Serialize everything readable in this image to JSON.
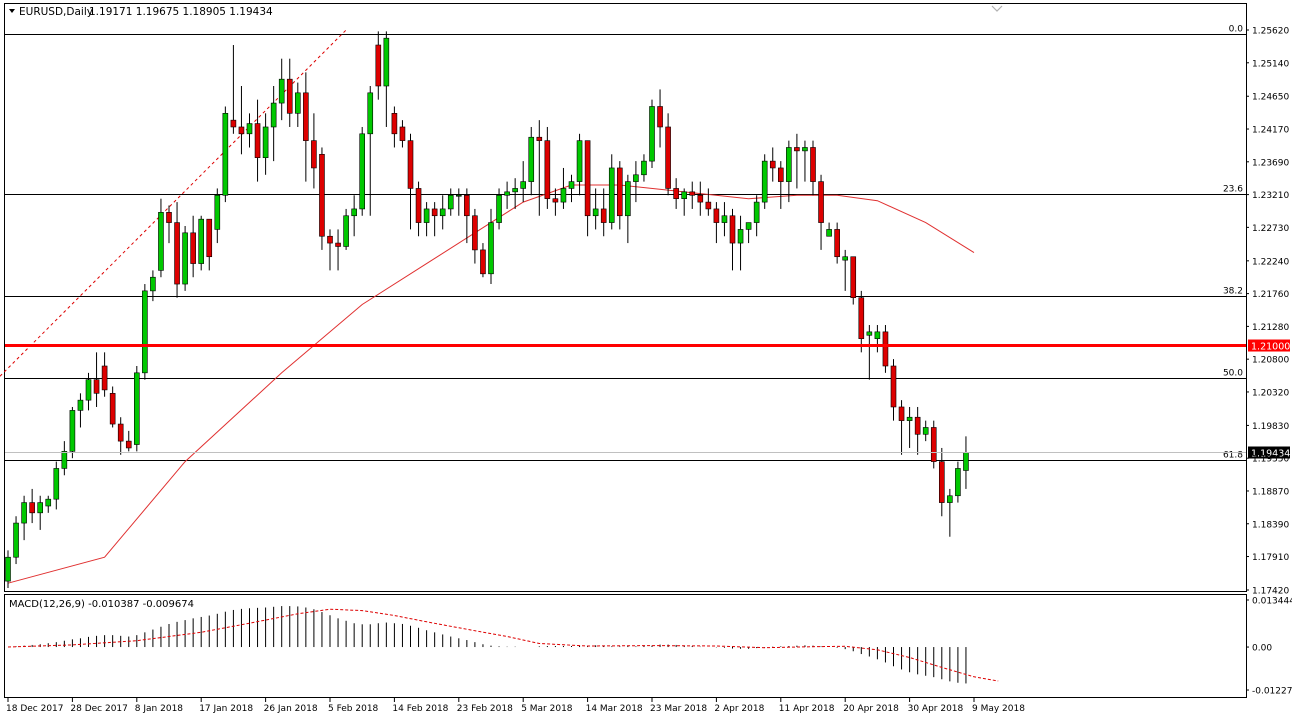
{
  "header": {
    "title": "EURUSD,Daily",
    "ohlc": "1.19171 1.19675 1.18905 1.19434"
  },
  "chart_data": {
    "type": "candlestick",
    "symbol": "EURUSD",
    "timeframe": "Daily",
    "colors": {
      "bull": "#00c800",
      "bear": "#dd0000",
      "ma": "#e03030",
      "fib": "#000000",
      "level": "#ff0000",
      "grid": "#000000"
    },
    "ylim": [
      1.1742,
      1.2562
    ],
    "y_ticks": [
      "1.25620",
      "1.25140",
      "1.24650",
      "1.24170",
      "1.23690",
      "1.23210",
      "1.22730",
      "1.22240",
      "1.21760",
      "1.21280",
      "1.20800",
      "1.20320",
      "1.19830",
      "1.19350",
      "1.18870",
      "1.18390",
      "1.17910",
      "1.17420"
    ],
    "x_ticks": [
      "18 Dec 2017",
      "28 Dec 2017",
      "8 Jan 2018",
      "17 Jan 2018",
      "26 Jan 2018",
      "5 Feb 2018",
      "14 Feb 2018",
      "23 Feb 2018",
      "5 Mar 2018",
      "14 Mar 2018",
      "23 Mar 2018",
      "2 Apr 2018",
      "11 Apr 2018",
      "20 Apr 2018",
      "30 Apr 2018",
      "9 May 2018"
    ],
    "fib_levels": [
      {
        "label": "0.0",
        "price": 1.2556
      },
      {
        "label": "23.6",
        "price": 1.2322
      },
      {
        "label": "38.2",
        "price": 1.2172
      },
      {
        "label": "50.0",
        "price": 1.2052
      },
      {
        "label": "61.8",
        "price": 1.1932
      }
    ],
    "horizontal_level": {
      "label": "1.21000",
      "price": 1.21
    },
    "current_price_label": "1.19434",
    "current_price": 1.19434,
    "candles": [
      [
        1.1755,
        1.18,
        1.1745,
        1.179
      ],
      [
        1.179,
        1.185,
        1.178,
        1.184
      ],
      [
        1.184,
        1.188,
        1.1815,
        1.187
      ],
      [
        1.187,
        1.189,
        1.184,
        1.1855
      ],
      [
        1.1855,
        1.188,
        1.183,
        1.187
      ],
      [
        1.1865,
        1.188,
        1.1855,
        1.1875
      ],
      [
        1.1875,
        1.193,
        1.186,
        1.192
      ],
      [
        1.192,
        1.196,
        1.191,
        1.1945
      ],
      [
        1.1945,
        1.201,
        1.1935,
        1.2005
      ],
      [
        1.2005,
        1.203,
        1.198,
        1.202
      ],
      [
        1.202,
        1.206,
        1.2005,
        1.205
      ],
      [
        1.205,
        1.209,
        1.201,
        1.203
      ],
      [
        1.207,
        1.209,
        1.2025,
        1.2035
      ],
      [
        1.203,
        1.204,
        1.198,
        1.1985
      ],
      [
        1.1985,
        1.1995,
        1.194,
        1.196
      ],
      [
        1.196,
        1.1975,
        1.1945,
        1.195
      ],
      [
        1.1955,
        1.207,
        1.1945,
        1.206
      ],
      [
        1.206,
        1.219,
        1.205,
        1.218
      ],
      [
        1.218,
        1.221,
        1.2165,
        1.22
      ],
      [
        1.221,
        1.2315,
        1.22,
        1.2295
      ],
      [
        1.2295,
        1.2305,
        1.225,
        1.228
      ],
      [
        1.228,
        1.231,
        1.217,
        1.219
      ],
      [
        1.219,
        1.2275,
        1.218,
        1.2265
      ],
      [
        1.2265,
        1.229,
        1.22,
        1.222
      ],
      [
        1.222,
        1.229,
        1.221,
        1.2285
      ],
      [
        1.2285,
        1.2285,
        1.221,
        1.223
      ],
      [
        1.227,
        1.233,
        1.225,
        1.232
      ],
      [
        1.232,
        1.245,
        1.231,
        1.244
      ],
      [
        1.243,
        1.254,
        1.241,
        1.242
      ],
      [
        1.242,
        1.248,
        1.238,
        1.241
      ],
      [
        1.241,
        1.244,
        1.239,
        1.2425
      ],
      [
        1.2425,
        1.246,
        1.234,
        1.2375
      ],
      [
        1.2375,
        1.244,
        1.235,
        1.242
      ],
      [
        1.242,
        1.248,
        1.237,
        1.2455
      ],
      [
        1.2455,
        1.252,
        1.243,
        1.249
      ],
      [
        1.249,
        1.252,
        1.242,
        1.244
      ],
      [
        1.244,
        1.2485,
        1.242,
        1.247
      ],
      [
        1.247,
        1.25,
        1.234,
        1.24
      ],
      [
        1.24,
        1.244,
        1.233,
        1.236
      ],
      [
        1.238,
        1.239,
        1.224,
        1.226
      ],
      [
        1.226,
        1.227,
        1.221,
        1.225
      ],
      [
        1.225,
        1.227,
        1.221,
        1.2245
      ],
      [
        1.2245,
        1.23,
        1.224,
        1.229
      ],
      [
        1.229,
        1.232,
        1.226,
        1.23
      ],
      [
        1.23,
        1.242,
        1.229,
        1.241
      ],
      [
        1.241,
        1.248,
        1.229,
        1.247
      ],
      [
        1.254,
        1.256,
        1.246,
        1.248
      ],
      [
        1.248,
        1.256,
        1.242,
        1.255
      ],
      [
        1.244,
        1.245,
        1.239,
        1.241
      ],
      [
        1.242,
        1.243,
        1.239,
        1.24
      ],
      [
        1.24,
        1.241,
        1.227,
        1.233
      ],
      [
        1.233,
        1.234,
        1.226,
        1.228
      ],
      [
        1.228,
        1.231,
        1.226,
        1.23
      ],
      [
        1.23,
        1.231,
        1.226,
        1.229
      ],
      [
        1.229,
        1.232,
        1.227,
        1.23
      ],
      [
        1.23,
        1.233,
        1.229,
        1.232
      ],
      [
        1.232,
        1.233,
        1.229,
        1.232
      ],
      [
        1.232,
        1.233,
        1.225,
        1.229
      ],
      [
        1.229,
        1.23,
        1.222,
        1.224
      ],
      [
        1.224,
        1.225,
        1.22,
        1.2205
      ],
      [
        1.2205,
        1.23,
        1.219,
        1.228
      ],
      [
        1.228,
        1.233,
        1.227,
        1.232
      ],
      [
        1.232,
        1.234,
        1.23,
        1.2325
      ],
      [
        1.2325,
        1.2345,
        1.23,
        1.233
      ],
      [
        1.233,
        1.237,
        1.231,
        1.234
      ],
      [
        1.234,
        1.242,
        1.232,
        1.2405
      ],
      [
        1.2405,
        1.243,
        1.229,
        1.24
      ],
      [
        1.24,
        1.242,
        1.23,
        1.2315
      ],
      [
        1.2315,
        1.233,
        1.229,
        1.231
      ],
      [
        1.231,
        1.236,
        1.23,
        1.233
      ],
      [
        1.233,
        1.235,
        1.231,
        1.234
      ],
      [
        1.234,
        1.241,
        1.232,
        1.24
      ],
      [
        1.24,
        1.24,
        1.226,
        1.229
      ],
      [
        1.229,
        1.233,
        1.227,
        1.23
      ],
      [
        1.23,
        1.233,
        1.226,
        1.228
      ],
      [
        1.228,
        1.238,
        1.227,
        1.236
      ],
      [
        1.236,
        1.237,
        1.227,
        1.229
      ],
      [
        1.229,
        1.235,
        1.225,
        1.234
      ],
      [
        1.234,
        1.237,
        1.231,
        1.235
      ],
      [
        1.235,
        1.238,
        1.234,
        1.237
      ],
      [
        1.237,
        1.246,
        1.236,
        1.245
      ],
      [
        1.245,
        1.2475,
        1.239,
        1.242
      ],
      [
        1.242,
        1.244,
        1.232,
        1.233
      ],
      [
        1.233,
        1.2345,
        1.23,
        1.2315
      ],
      [
        1.2315,
        1.233,
        1.229,
        1.2325
      ],
      [
        1.2325,
        1.234,
        1.23,
        1.232
      ],
      [
        1.232,
        1.234,
        1.229,
        1.231
      ],
      [
        1.231,
        1.233,
        1.229,
        1.23
      ],
      [
        1.23,
        1.231,
        1.225,
        1.228
      ],
      [
        1.228,
        1.231,
        1.226,
        1.229
      ],
      [
        1.229,
        1.23,
        1.221,
        1.225
      ],
      [
        1.225,
        1.229,
        1.221,
        1.227
      ],
      [
        1.227,
        1.228,
        1.225,
        1.228
      ],
      [
        1.228,
        1.232,
        1.226,
        1.231
      ],
      [
        1.231,
        1.238,
        1.23,
        1.237
      ],
      [
        1.237,
        1.239,
        1.234,
        1.236
      ],
      [
        1.236,
        1.237,
        1.23,
        1.234
      ],
      [
        1.234,
        1.24,
        1.231,
        1.239
      ],
      [
        1.239,
        1.241,
        1.233,
        1.2385
      ],
      [
        1.2385,
        1.24,
        1.234,
        1.239
      ],
      [
        1.239,
        1.24,
        1.232,
        1.234
      ],
      [
        1.234,
        1.235,
        1.224,
        1.228
      ],
      [
        1.226,
        1.228,
        1.226,
        1.227
      ],
      [
        1.227,
        1.228,
        1.222,
        1.223
      ],
      [
        1.2225,
        1.224,
        1.218,
        1.223
      ],
      [
        1.223,
        1.223,
        1.216,
        1.217
      ],
      [
        1.217,
        1.218,
        1.209,
        1.211
      ],
      [
        1.2115,
        1.213,
        1.205,
        1.212
      ],
      [
        1.211,
        1.213,
        1.209,
        1.212
      ],
      [
        1.212,
        1.213,
        1.206,
        1.207
      ],
      [
        1.207,
        1.208,
        1.199,
        1.201
      ],
      [
        1.201,
        1.202,
        1.194,
        1.199
      ],
      [
        1.199,
        1.201,
        1.195,
        1.1995
      ],
      [
        1.1995,
        1.201,
        1.194,
        1.197
      ],
      [
        1.197,
        1.199,
        1.196,
        1.198
      ],
      [
        1.198,
        1.199,
        1.192,
        1.193
      ],
      [
        1.193,
        1.195,
        1.185,
        1.187
      ],
      [
        1.187,
        1.189,
        1.182,
        1.188
      ],
      [
        1.188,
        1.193,
        1.187,
        1.192
      ],
      [
        1.1917,
        1.1967,
        1.189,
        1.1943
      ]
    ],
    "ma_line": [
      [
        0,
        1.1752
      ],
      [
        12,
        1.179
      ],
      [
        22,
        1.193
      ],
      [
        34,
        1.206
      ],
      [
        44,
        1.216
      ],
      [
        52,
        1.222
      ],
      [
        58,
        1.2265
      ],
      [
        64,
        1.231
      ],
      [
        70,
        1.2335
      ],
      [
        76,
        1.2335
      ],
      [
        84,
        1.2325
      ],
      [
        92,
        1.2315
      ],
      [
        98,
        1.232
      ],
      [
        103,
        1.232
      ],
      [
        108,
        1.2312
      ],
      [
        114,
        1.228
      ],
      [
        120,
        1.2236
      ]
    ],
    "trendline": {
      "from": [
        -1,
        1.2055
      ],
      "to": [
        42,
        1.2562
      ]
    },
    "macd": {
      "label": "MACD(12,26,9) -0.010387 -0.009674",
      "ylim": [
        -0.01227,
        0.01344
      ],
      "y_ticks": [
        "0.013444",
        "0.00",
        "-0.012276"
      ],
      "histogram": [
        0.0,
        0.0002,
        0.0004,
        0.0006,
        0.0008,
        0.0011,
        0.0014,
        0.0018,
        0.0022,
        0.0025,
        0.0029,
        0.0032,
        0.0034,
        0.0034,
        0.0032,
        0.003,
        0.0034,
        0.0042,
        0.005,
        0.0058,
        0.0066,
        0.0072,
        0.0077,
        0.0082,
        0.0086,
        0.009,
        0.0095,
        0.0101,
        0.0106,
        0.0109,
        0.0111,
        0.0112,
        0.0113,
        0.0115,
        0.0117,
        0.0117,
        0.0116,
        0.0113,
        0.0108,
        0.01,
        0.0091,
        0.0082,
        0.0075,
        0.0068,
        0.0065,
        0.0065,
        0.0068,
        0.007,
        0.0068,
        0.0066,
        0.0061,
        0.0055,
        0.0048,
        0.0042,
        0.0036,
        0.003,
        0.0025,
        0.002,
        0.0014,
        0.0008,
        0.0004,
        0.0002,
        0.0001,
        0.0001,
        0.0,
        0.0,
        0.0002,
        0.0003,
        0.0003,
        0.0003,
        0.0003,
        0.0004,
        0.0004,
        0.0005,
        0.0003,
        0.0002,
        0.0002,
        0.0003,
        0.0002,
        0.0003,
        0.0004,
        0.0007,
        0.0007,
        0.0006,
        0.0004,
        0.0003,
        0.0001,
        0.0,
        -0.0001,
        -0.0002,
        -0.0004,
        -0.0005,
        -0.0005,
        -0.0003,
        -0.0001,
        0.0001,
        0.0002,
        0.0003,
        0.0004,
        0.0005,
        0.0004,
        0.0002,
        0.0,
        -0.0002,
        -0.0006,
        -0.0012,
        -0.002,
        -0.0027,
        -0.0035,
        -0.0044,
        -0.0055,
        -0.0064,
        -0.0072,
        -0.0078,
        -0.0082,
        -0.0086,
        -0.0092,
        -0.0098,
        -0.0102,
        -0.0104
      ],
      "signal": [
        [
          0,
          0.0
        ],
        [
          8,
          0.0006
        ],
        [
          16,
          0.0018
        ],
        [
          24,
          0.0042
        ],
        [
          30,
          0.0068
        ],
        [
          36,
          0.0095
        ],
        [
          40,
          0.0108
        ],
        [
          44,
          0.0104
        ],
        [
          48,
          0.009
        ],
        [
          52,
          0.0072
        ],
        [
          56,
          0.0055
        ],
        [
          62,
          0.003
        ],
        [
          66,
          0.001
        ],
        [
          72,
          0.0003
        ],
        [
          80,
          0.0004
        ],
        [
          88,
          0.0003
        ],
        [
          94,
          -0.0002
        ],
        [
          100,
          0.0001
        ],
        [
          104,
          0.0002
        ],
        [
          108,
          -0.0008
        ],
        [
          112,
          -0.003
        ],
        [
          116,
          -0.0058
        ],
        [
          120,
          -0.0085
        ],
        [
          123,
          -0.0097
        ]
      ]
    }
  }
}
